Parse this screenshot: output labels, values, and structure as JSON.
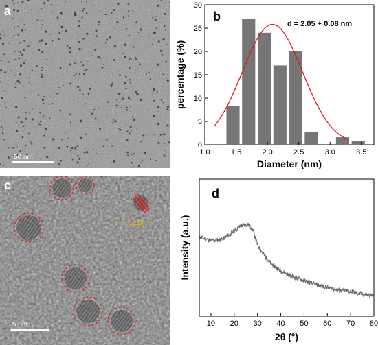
{
  "panels": {
    "a": {
      "label": "a",
      "scalebar": "50 nm"
    },
    "b": {
      "label": "b"
    },
    "c": {
      "label": "c",
      "scalebar": "5 nm",
      "lattice": "d=0.218 nm"
    },
    "d": {
      "label": "d"
    }
  },
  "colors": {
    "bar": "#767676",
    "fit": "#e0141e",
    "tem_bg": "#8a8a8a",
    "circle": "#e01a1a",
    "lattice_text": "#e8b400",
    "xrd": "#6a6a6a"
  },
  "chart_data": [
    {
      "type": "bar",
      "panel": "b",
      "xlabel": "Diameter (nm)",
      "ylabel": "percentage (%)",
      "annotation": "d = 2.05 + 0.08 nm",
      "xlim": [
        1.0,
        3.7
      ],
      "ylim": [
        0,
        30
      ],
      "x_ticks": [
        "1.0",
        "1.5",
        "2.0",
        "2.5",
        "3.0",
        "3.5"
      ],
      "y_ticks": [
        "0",
        "5",
        "10",
        "15",
        "20",
        "25",
        "30"
      ],
      "bin_width": 0.25,
      "x": [
        1.45,
        1.7,
        1.95,
        2.2,
        2.45,
        2.7,
        2.95,
        3.2,
        3.45
      ],
      "values": [
        8.3,
        27,
        24,
        17,
        20,
        2.7,
        0,
        1.6,
        0.8
      ],
      "fit": {
        "type": "gaussian",
        "center": 2.08,
        "sigma": 0.48,
        "amplitude": 25.8,
        "range": [
          1.15,
          3.3
        ]
      }
    },
    {
      "type": "line",
      "panel": "d",
      "xlabel": "2θ (°)",
      "ylabel": "Intensity (a.u.)",
      "xlim": [
        5,
        80
      ],
      "x_ticks": [
        "10",
        "20",
        "30",
        "40",
        "50",
        "60",
        "70",
        "80"
      ],
      "x": [
        5,
        10,
        15,
        20,
        23,
        26,
        28,
        30,
        33,
        36,
        40,
        45,
        50,
        55,
        60,
        65,
        70,
        75,
        80
      ],
      "values": [
        0.58,
        0.55,
        0.56,
        0.62,
        0.66,
        0.67,
        0.63,
        0.52,
        0.44,
        0.38,
        0.33,
        0.29,
        0.26,
        0.23,
        0.21,
        0.19,
        0.18,
        0.16,
        0.15
      ],
      "ylim": [
        0,
        1
      ]
    }
  ]
}
